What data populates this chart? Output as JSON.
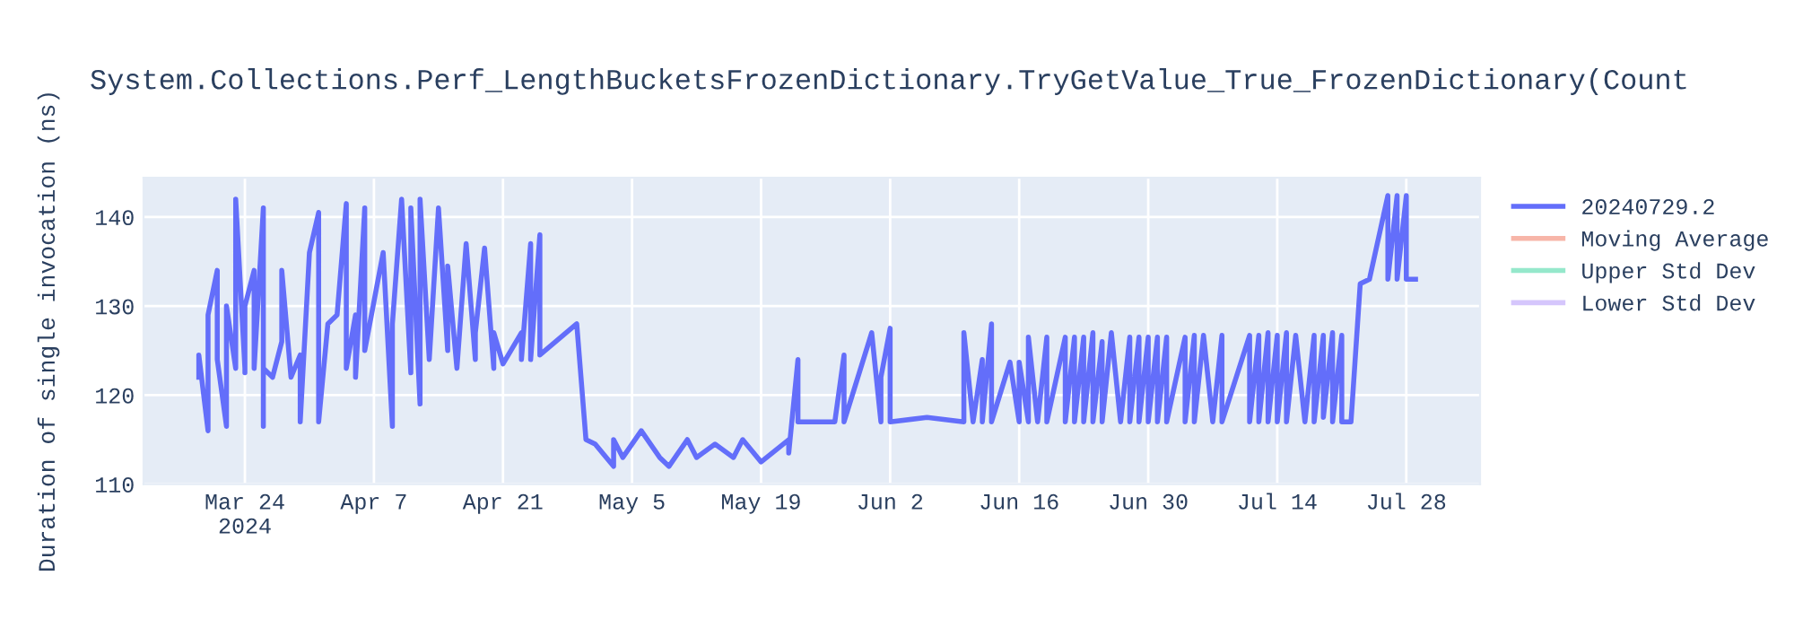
{
  "chart_data": {
    "type": "line",
    "title": "System.Collections.Perf_LengthBucketsFrozenDictionary.TryGetValue_True_FrozenDictionary(Count",
    "ylabel": "Duration of single invocation (ns)",
    "xlim": [
      "2024-03-13",
      "2024-08-05"
    ],
    "xticks": [
      {
        "value": "2024-03-24",
        "label": "Mar 24\n2024"
      },
      {
        "value": "2024-04-07",
        "label": "Apr 7"
      },
      {
        "value": "2024-04-21",
        "label": "Apr 21"
      },
      {
        "value": "2024-05-05",
        "label": "May 5"
      },
      {
        "value": "2024-05-19",
        "label": "May 19"
      },
      {
        "value": "2024-06-02",
        "label": "Jun 2"
      },
      {
        "value": "2024-06-16",
        "label": "Jun 16"
      },
      {
        "value": "2024-06-30",
        "label": "Jun 30"
      },
      {
        "value": "2024-07-14",
        "label": "Jul 14"
      },
      {
        "value": "2024-07-28",
        "label": "Jul 28"
      }
    ],
    "ylim": [
      110,
      144.4
    ],
    "yticks": [
      110,
      120,
      130,
      140
    ],
    "grid": true,
    "legend": "right",
    "series": [
      {
        "name": "20240729.2",
        "color": "#636efa",
        "x": [
          "2024-03-19",
          "2024-03-19",
          "2024-03-20",
          "2024-03-20",
          "2024-03-21",
          "2024-03-21",
          "2024-03-22",
          "2024-03-22",
          "2024-03-23",
          "2024-03-23",
          "2024-03-24",
          "2024-03-24",
          "2024-03-24",
          "2024-03-25",
          "2024-03-25",
          "2024-03-26",
          "2024-03-26",
          "2024-03-26",
          "2024-03-27",
          "2024-03-28",
          "2024-03-28",
          "2024-03-29",
          "2024-03-30",
          "2024-03-30",
          "2024-03-31",
          "2024-04-01",
          "2024-04-01",
          "2024-04-02",
          "2024-04-03",
          "2024-04-04",
          "2024-04-04",
          "2024-04-05",
          "2024-04-05",
          "2024-04-06",
          "2024-04-06",
          "2024-04-08",
          "2024-04-09",
          "2024-04-09",
          "2024-04-10",
          "2024-04-11",
          "2024-04-11",
          "2024-04-12",
          "2024-04-12",
          "2024-04-13",
          "2024-04-14",
          "2024-04-15",
          "2024-04-15",
          "2024-04-16",
          "2024-04-17",
          "2024-04-18",
          "2024-04-18",
          "2024-04-19",
          "2024-04-20",
          "2024-04-20",
          "2024-04-21",
          "2024-04-23",
          "2024-04-23",
          "2024-04-24",
          "2024-04-24",
          "2024-04-25",
          "2024-04-25",
          "2024-04-29",
          "2024-04-30",
          "2024-05-01",
          "2024-05-03",
          "2024-05-03",
          "2024-05-04",
          "2024-05-06",
          "2024-05-08",
          "2024-05-09",
          "2024-05-11",
          "2024-05-12",
          "2024-05-14",
          "2024-05-16",
          "2024-05-17",
          "2024-05-19",
          "2024-05-22",
          "2024-05-22",
          "2024-05-23",
          "2024-05-23",
          "2024-05-27",
          "2024-05-28",
          "2024-05-28",
          "2024-05-31",
          "2024-06-01",
          "2024-06-01",
          "2024-06-02",
          "2024-06-02",
          "2024-06-06",
          "2024-06-10",
          "2024-06-10",
          "2024-06-11",
          "2024-06-12",
          "2024-06-12",
          "2024-06-13",
          "2024-06-13",
          "2024-06-15",
          "2024-06-16",
          "2024-06-16",
          "2024-06-17",
          "2024-06-17",
          "2024-06-18",
          "2024-06-19",
          "2024-06-19",
          "2024-06-21",
          "2024-06-21",
          "2024-06-22",
          "2024-06-22",
          "2024-06-23",
          "2024-06-23",
          "2024-06-24",
          "2024-06-24",
          "2024-06-25",
          "2024-06-25",
          "2024-06-26",
          "2024-06-27",
          "2024-06-28",
          "2024-06-28",
          "2024-06-29",
          "2024-06-29",
          "2024-06-30",
          "2024-06-30",
          "2024-07-01",
          "2024-07-01",
          "2024-07-02",
          "2024-07-02",
          "2024-07-04",
          "2024-07-04",
          "2024-07-05",
          "2024-07-05",
          "2024-07-06",
          "2024-07-07",
          "2024-07-08",
          "2024-07-08",
          "2024-07-11",
          "2024-07-11",
          "2024-07-12",
          "2024-07-12",
          "2024-07-13",
          "2024-07-13",
          "2024-07-14",
          "2024-07-14",
          "2024-07-15",
          "2024-07-15",
          "2024-07-16",
          "2024-07-17",
          "2024-07-18",
          "2024-07-18",
          "2024-07-19",
          "2024-07-19",
          "2024-07-20",
          "2024-07-20",
          "2024-07-21",
          "2024-07-21",
          "2024-07-22",
          "2024-07-23",
          "2024-07-24",
          "2024-07-26",
          "2024-07-26",
          "2024-07-27",
          "2024-07-27",
          "2024-07-28",
          "2024-07-28",
          "2024-07-29"
        ],
        "values": [
          122,
          124.5,
          116,
          129,
          134,
          124,
          116.5,
          130,
          123,
          142,
          123,
          122.5,
          130,
          134,
          123,
          141,
          116.5,
          123,
          122,
          126,
          134,
          122,
          124.5,
          117,
          136,
          140.5,
          117,
          128,
          129,
          141.5,
          123,
          129,
          122,
          141,
          125,
          136,
          116.5,
          128,
          142,
          122.5,
          141,
          119,
          142,
          124,
          141,
          125,
          134.5,
          123,
          137,
          124,
          127,
          136.5,
          123,
          127,
          123.5,
          127,
          124,
          137,
          124,
          138,
          124.5,
          128,
          115,
          114.5,
          112,
          115,
          113,
          116,
          113,
          112,
          115,
          113,
          114.5,
          113,
          115,
          112.5,
          115,
          113.5,
          124,
          117,
          117,
          124.5,
          117,
          127,
          117,
          122,
          127.5,
          117,
          117.5,
          117,
          127,
          117,
          124,
          117,
          128,
          117,
          123.7,
          117,
          123.7,
          117,
          126.5,
          117,
          126.5,
          117,
          126.5,
          117,
          126.5,
          117,
          126.5,
          117,
          127,
          117,
          126,
          117,
          127,
          117,
          126.5,
          117,
          126.5,
          117,
          126.5,
          117,
          126.5,
          117,
          126.5,
          117,
          126.5,
          117,
          126.7,
          117,
          126.7,
          117,
          126.7,
          117,
          126.7,
          117,
          126.7,
          117,
          127,
          117,
          126.7,
          117,
          127,
          117,
          126.7,
          117,
          126.7,
          117,
          126.7,
          117.5,
          127,
          117,
          126.7,
          117,
          117,
          132.5,
          133,
          142.4,
          133,
          142.4,
          133,
          142.4,
          133,
          133
        ]
      },
      {
        "name": "Moving Average",
        "color": "#f7b5a8"
      },
      {
        "name": "Upper Std Dev",
        "color": "#95e8cb"
      },
      {
        "name": "Lower Std Dev",
        "color": "#d5c6fc"
      }
    ]
  }
}
